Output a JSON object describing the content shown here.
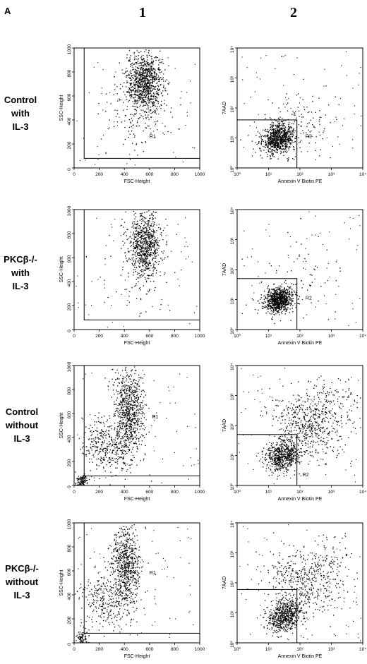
{
  "panel_letter": "A",
  "column_labels": [
    "1",
    "2"
  ],
  "rows": [
    {
      "label_lines": [
        "Control",
        "with",
        "IL-3"
      ]
    },
    {
      "label_lines": [
        "PKCβ-/-",
        "with",
        "IL-3"
      ]
    },
    {
      "label_lines": [
        "Control",
        "without",
        "IL-3"
      ]
    },
    {
      "label_lines": [
        "PKCβ-/-",
        "without",
        "IL-3"
      ]
    }
  ],
  "chart_data": [
    {
      "type": "scatter",
      "row": 0,
      "column": "1",
      "xlabel": "FSC-Height",
      "ylabel": "SSC-Height",
      "xlim": [
        0,
        1000
      ],
      "ylim": [
        0,
        1000
      ],
      "xticks": [
        "0",
        "200",
        "400",
        "600",
        "800",
        "1000"
      ],
      "yticks": [
        "0",
        "200",
        "400",
        "600",
        "800",
        "1000"
      ],
      "gate": {
        "label": "R1",
        "x_range": [
          80,
          1000
        ],
        "y_range": [
          80,
          1000
        ],
        "label_at": [
          600,
          250
        ]
      },
      "clusters": [
        {
          "cx": 560,
          "cy": 720,
          "sx": 70,
          "sy": 120,
          "n": 900,
          "rot": 0
        },
        {
          "cx": 500,
          "cy": 520,
          "sx": 130,
          "sy": 200,
          "n": 180,
          "rot": 0
        }
      ]
    },
    {
      "type": "scatter",
      "row": 0,
      "column": "2",
      "xlabel": "Annexin V Biotin PE",
      "ylabel": "7AAD",
      "log": true,
      "xlim": [
        1,
        10000
      ],
      "ylim": [
        1,
        10000
      ],
      "xticks": [
        "10⁰",
        "10¹",
        "10²",
        "10³",
        "10⁴"
      ],
      "yticks": [
        "10⁰",
        "10¹",
        "10²",
        "10³",
        "10⁴"
      ],
      "gate": {
        "label": "R2",
        "x_range": [
          1,
          80
        ],
        "y_range": [
          1,
          40
        ],
        "label_at": [
          150,
          10
        ]
      },
      "clusters": [
        {
          "cx": 1.3,
          "cy": 1.0,
          "sx": 0.28,
          "sy": 0.22,
          "n": 800,
          "rot": 0.6
        },
        {
          "cx": 1.8,
          "cy": 1.4,
          "sx": 0.7,
          "sy": 0.5,
          "n": 140,
          "rot": 0.4
        }
      ]
    },
    {
      "type": "scatter",
      "row": 1,
      "column": "1",
      "xlabel": "FSC-Height",
      "ylabel": "SSC-Height",
      "xlim": [
        0,
        1000
      ],
      "ylim": [
        0,
        1000
      ],
      "xticks": [
        "0",
        "200",
        "400",
        "600",
        "800",
        "1000"
      ],
      "yticks": [
        "0",
        "200",
        "400",
        "600",
        "800",
        "1000"
      ],
      "gate": {
        "label": "R1",
        "x_range": [
          80,
          1000
        ],
        "y_range": [
          80,
          1000
        ],
        "label_at": [
          520,
          560
        ]
      },
      "clusters": [
        {
          "cx": 560,
          "cy": 720,
          "sx": 60,
          "sy": 130,
          "n": 700,
          "rot": 0
        },
        {
          "cx": 520,
          "cy": 520,
          "sx": 120,
          "sy": 200,
          "n": 120,
          "rot": 0
        }
      ]
    },
    {
      "type": "scatter",
      "row": 1,
      "column": "2",
      "xlabel": "Annexin V Biotin PE",
      "ylabel": "7AAD",
      "log": true,
      "xlim": [
        1,
        10000
      ],
      "ylim": [
        1,
        10000
      ],
      "xticks": [
        "10⁰",
        "10¹",
        "10²",
        "10³",
        "10⁴"
      ],
      "yticks": [
        "10⁰",
        "10¹",
        "10²",
        "10³",
        "10⁴"
      ],
      "gate": {
        "label": "R2",
        "x_range": [
          1,
          80
        ],
        "y_range": [
          1,
          50
        ],
        "label_at": [
          150,
          10
        ]
      },
      "clusters": [
        {
          "cx": 1.3,
          "cy": 1.0,
          "sx": 0.25,
          "sy": 0.2,
          "n": 850,
          "rot": 0.5
        },
        {
          "cx": 2.0,
          "cy": 1.8,
          "sx": 0.8,
          "sy": 0.7,
          "n": 60,
          "rot": 0.2
        }
      ]
    },
    {
      "type": "scatter",
      "row": 2,
      "column": "1",
      "xlabel": "FSC-Height",
      "ylabel": "SSC-Height",
      "xlim": [
        0,
        1000
      ],
      "ylim": [
        0,
        1000
      ],
      "xticks": [
        "0",
        "200",
        "400",
        "600",
        "800",
        "1000"
      ],
      "yticks": [
        "0",
        "200",
        "400",
        "600",
        "800",
        "1000"
      ],
      "gate": {
        "label": "R1",
        "x_range": [
          80,
          1000
        ],
        "y_range": [
          80,
          1000
        ],
        "label_at": [
          620,
          560
        ]
      },
      "clusters": [
        {
          "cx": 430,
          "cy": 650,
          "sx": 60,
          "sy": 170,
          "n": 750,
          "rot": 0
        },
        {
          "cx": 280,
          "cy": 330,
          "sx": 110,
          "sy": 120,
          "n": 380,
          "rot": 0.7
        },
        {
          "cx": 60,
          "cy": 40,
          "sx": 25,
          "sy": 30,
          "n": 120,
          "rot": 0
        }
      ]
    },
    {
      "type": "scatter",
      "row": 2,
      "column": "2",
      "xlabel": "Annexin V Biotin PE",
      "ylabel": "7AAD",
      "log": true,
      "xlim": [
        1,
        10000
      ],
      "ylim": [
        1,
        10000
      ],
      "xticks": [
        "10⁰",
        "10¹",
        "10²",
        "10³",
        "10⁴"
      ],
      "yticks": [
        "10⁰",
        "10¹",
        "10²",
        "10³",
        "10⁴"
      ],
      "gate": {
        "label": "R2",
        "x_range": [
          1,
          80
        ],
        "y_range": [
          1,
          50
        ],
        "label_at": [
          120,
          2
        ]
      },
      "clusters": [
        {
          "cx": 1.45,
          "cy": 1.0,
          "sx": 0.3,
          "sy": 0.25,
          "n": 650,
          "rot": 0.6
        },
        {
          "cx": 2.2,
          "cy": 2.0,
          "sx": 0.45,
          "sy": 0.6,
          "n": 450,
          "rot": 0.9
        },
        {
          "cx": 3.0,
          "cy": 2.6,
          "sx": 0.5,
          "sy": 0.5,
          "n": 160,
          "rot": 0.5
        }
      ]
    },
    {
      "type": "scatter",
      "row": 3,
      "column": "1",
      "xlabel": "FSC-Height",
      "ylabel": "SSC-Height",
      "xlim": [
        0,
        1000
      ],
      "ylim": [
        0,
        1000
      ],
      "xticks": [
        "0",
        "200",
        "400",
        "600",
        "800",
        "1000"
      ],
      "yticks": [
        "0",
        "200",
        "400",
        "600",
        "800",
        "1000"
      ],
      "gate": {
        "label": "R1",
        "x_range": [
          80,
          1000
        ],
        "y_range": [
          80,
          1000
        ],
        "label_at": [
          600,
          570
        ]
      },
      "clusters": [
        {
          "cx": 410,
          "cy": 660,
          "sx": 60,
          "sy": 160,
          "n": 650,
          "rot": 0
        },
        {
          "cx": 270,
          "cy": 350,
          "sx": 100,
          "sy": 120,
          "n": 300,
          "rot": 0.7
        },
        {
          "cx": 60,
          "cy": 40,
          "sx": 25,
          "sy": 30,
          "n": 90,
          "rot": 0
        }
      ]
    },
    {
      "type": "scatter",
      "row": 3,
      "column": "2",
      "xlabel": "Annexin V Biotin PE",
      "ylabel": "7AAD",
      "log": true,
      "xlim": [
        1,
        10000
      ],
      "ylim": [
        1,
        10000
      ],
      "xticks": [
        "10⁰",
        "10¹",
        "10²",
        "10³",
        "10⁴"
      ],
      "yticks": [
        "10⁰",
        "10¹",
        "10²",
        "10³",
        "10⁴"
      ],
      "gate": {
        "label": "",
        "x_range": [
          1,
          80
        ],
        "y_range": [
          1,
          60
        ],
        "label_at": [
          120,
          2
        ]
      },
      "clusters": [
        {
          "cx": 1.5,
          "cy": 0.9,
          "sx": 0.3,
          "sy": 0.25,
          "n": 600,
          "rot": 0.6
        },
        {
          "cx": 2.1,
          "cy": 2.0,
          "sx": 0.45,
          "sy": 0.6,
          "n": 380,
          "rot": 0.9
        },
        {
          "cx": 2.8,
          "cy": 2.8,
          "sx": 0.45,
          "sy": 0.45,
          "n": 120,
          "rot": 0.5
        }
      ]
    }
  ]
}
